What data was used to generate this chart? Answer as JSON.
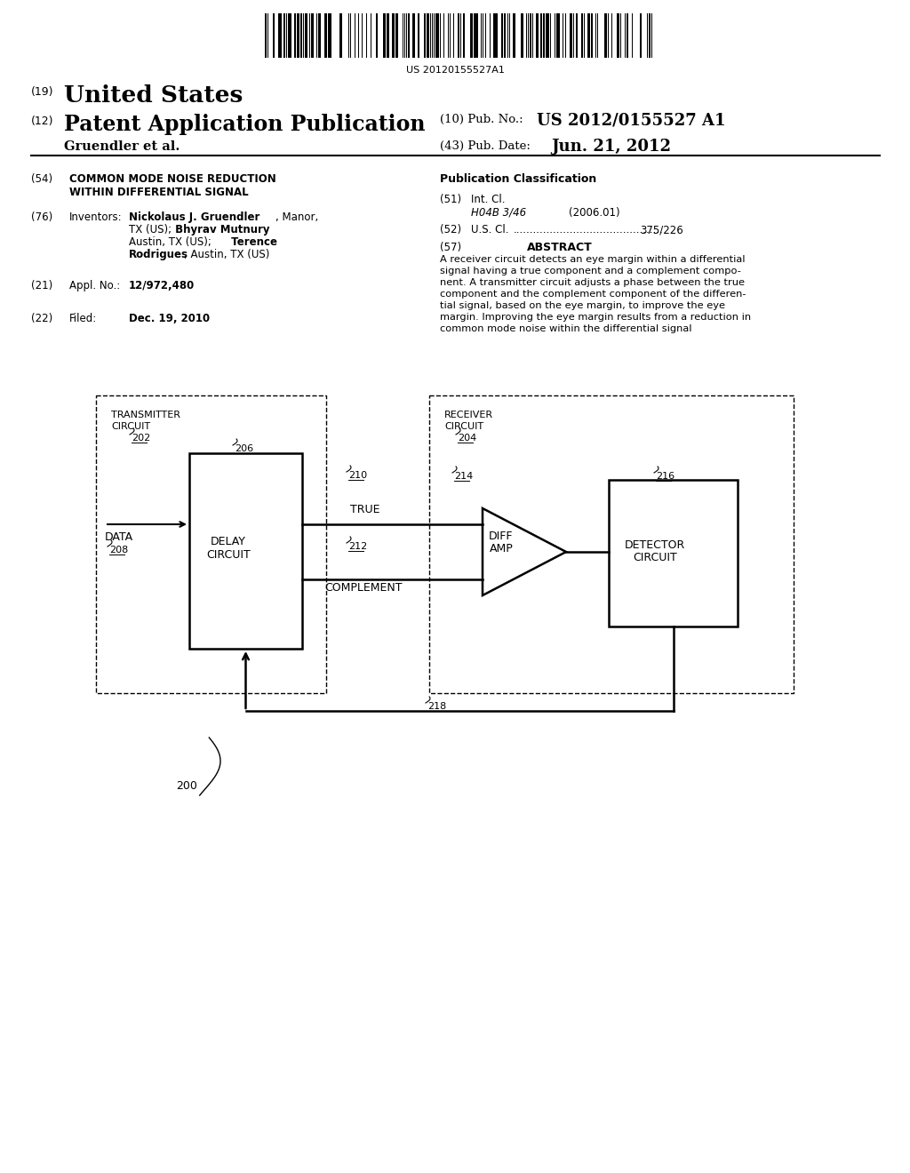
{
  "barcode_text": "US 20120155527A1",
  "bg_color": "#ffffff",
  "text_color": "#000000",
  "title_19": "United States",
  "num_19": "(19)",
  "title_12": "Patent Application Publication",
  "num_12": "(12)",
  "pub_no_label": "(10) Pub. No.:",
  "pub_no_value": "US 2012/0155527 A1",
  "author": "Gruendler et al.",
  "pub_date_label": "(43) Pub. Date:",
  "pub_date_value": "Jun. 21, 2012",
  "f54_num": "(54)",
  "f54_t1": "COMMON MODE NOISE REDUCTION",
  "f54_t2": "WITHIN DIFFERENTIAL SIGNAL",
  "f76_num": "(76)",
  "f76_key": "Inventors:",
  "inv1a": "Nickolaus J. Gruendler",
  "inv1b": ", Manor,",
  "inv2a": "TX (US);",
  "inv2b": " Bhyrav Mutnury",
  "inv2c": ",",
  "inv3a": "Austin, TX (US);",
  "inv3b": " Terence",
  "inv4a": "Rodrigues",
  "inv4b": ", Austin, TX (US)",
  "f21_num": "(21)",
  "f21_key": "Appl. No.:",
  "f21_val": "12/972,480",
  "f22_num": "(22)",
  "f22_key": "Filed:",
  "f22_val": "Dec. 19, 2010",
  "pub_class": "Publication Classification",
  "f51_num": "(51)",
  "f51_key": "Int. Cl.",
  "f51_class": "H04B 3/46",
  "f51_year": "(2006.01)",
  "f52_num": "(52)",
  "f52_key": "U.S. Cl.",
  "f52_val": "375/226",
  "f57_num": "(57)",
  "f57_key": "ABSTRACT",
  "f57_text": "A receiver circuit detects an eye margin within a differential signal having a true component and a complement component. A transmitter circuit adjusts a phase between the true component and the complement component of the differential signal, based on the eye margin, to improve the eye margin. Improving the eye margin results from a reduction in common mode noise within the differential signal"
}
